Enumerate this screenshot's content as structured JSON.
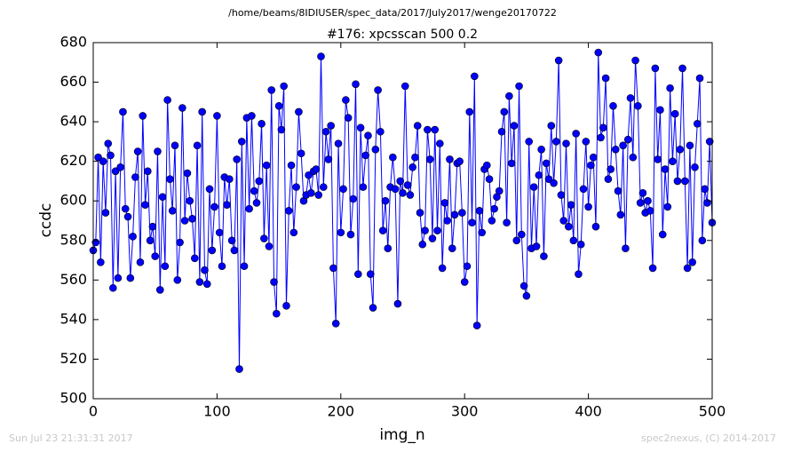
{
  "chart_data": {
    "type": "line",
    "suptitle": "/home/beams/8IDIUSER/spec_data/2017/July2017/wenge20170722",
    "title": "#176: xpcsscan 500 0.2",
    "xlabel": "img_n",
    "ylabel": "ccdc",
    "footer_left": "Sun Jul 23 21:31:31 2017",
    "footer_right": "spec2nexus, (C) 2014-2017",
    "xlim": [
      0,
      500
    ],
    "xticks": [
      0,
      100,
      200,
      300,
      400,
      500
    ],
    "ylim": [
      500,
      680
    ],
    "yticks": [
      500,
      520,
      540,
      560,
      580,
      600,
      620,
      640,
      660,
      680
    ],
    "grid": false,
    "x": [
      0,
      2,
      4,
      6,
      8,
      10,
      12,
      14,
      16,
      18,
      20,
      22,
      24,
      26,
      28,
      30,
      32,
      34,
      36,
      38,
      40,
      42,
      44,
      46,
      48,
      50,
      52,
      54,
      56,
      58,
      60,
      62,
      64,
      66,
      68,
      70,
      72,
      74,
      76,
      78,
      80,
      82,
      84,
      86,
      88,
      90,
      92,
      94,
      96,
      98,
      100,
      102,
      104,
      106,
      108,
      110,
      112,
      114,
      116,
      118,
      120,
      122,
      124,
      126,
      128,
      130,
      132,
      134,
      136,
      138,
      140,
      142,
      144,
      146,
      148,
      150,
      152,
      154,
      156,
      158,
      160,
      162,
      164,
      166,
      168,
      170,
      172,
      174,
      176,
      178,
      180,
      182,
      184,
      186,
      188,
      190,
      192,
      194,
      196,
      198,
      200,
      202,
      204,
      206,
      208,
      210,
      212,
      214,
      216,
      218,
      220,
      222,
      224,
      226,
      228,
      230,
      232,
      234,
      236,
      238,
      240,
      242,
      244,
      246,
      248,
      250,
      252,
      254,
      256,
      258,
      260,
      262,
      264,
      266,
      268,
      270,
      272,
      274,
      276,
      278,
      280,
      282,
      284,
      286,
      288,
      290,
      292,
      294,
      296,
      298,
      300,
      302,
      304,
      306,
      308,
      310,
      312,
      314,
      316,
      318,
      320,
      322,
      324,
      326,
      328,
      330,
      332,
      334,
      336,
      338,
      340,
      342,
      344,
      346,
      348,
      350,
      352,
      354,
      356,
      358,
      360,
      362,
      364,
      366,
      368,
      370,
      372,
      374,
      376,
      378,
      380,
      382,
      384,
      386,
      388,
      390,
      392,
      394,
      396,
      398,
      400,
      402,
      404,
      406,
      408,
      410,
      412,
      414,
      416,
      418,
      420,
      422,
      424,
      426,
      428,
      430,
      432,
      434,
      436,
      438,
      440,
      442,
      444,
      446,
      448,
      450,
      452,
      454,
      456,
      458,
      460,
      462,
      464,
      466,
      468,
      470,
      472,
      474,
      476,
      478,
      480,
      482,
      484,
      486,
      488,
      490,
      492,
      494,
      496,
      498,
      500
    ],
    "series": [
      {
        "name": "ccdc",
        "color": "#0000ff",
        "values": [
          575,
          579,
          622,
          569,
          620,
          594,
          629,
          623,
          556,
          615,
          561,
          617,
          645,
          596,
          592,
          561,
          582,
          612,
          625,
          569,
          643,
          598,
          615,
          580,
          587,
          572,
          625,
          555,
          602,
          567,
          651,
          611,
          595,
          628,
          560,
          579,
          647,
          590,
          614,
          600,
          591,
          571,
          628,
          559,
          645,
          565,
          558,
          606,
          575,
          597,
          643,
          584,
          567,
          612,
          598,
          611,
          580,
          575,
          621,
          515,
          630,
          567,
          642,
          596,
          643,
          605,
          599,
          610,
          639,
          581,
          618,
          577,
          656,
          559,
          543,
          648,
          636,
          658,
          547,
          595,
          618,
          584,
          607,
          645,
          624,
          600,
          603,
          613,
          604,
          615,
          616,
          603,
          673,
          607,
          635,
          621,
          638,
          566,
          538,
          629,
          584,
          606,
          651,
          642,
          583,
          601,
          659,
          563,
          637,
          607,
          623,
          633,
          563,
          546,
          626,
          656,
          635,
          585,
          600,
          576,
          607,
          622,
          606,
          548,
          610,
          604,
          658,
          608,
          603,
          617,
          622,
          638,
          594,
          578,
          585,
          636,
          621,
          581,
          636,
          585,
          629,
          566,
          599,
          590,
          621,
          576,
          593,
          619,
          620,
          594,
          559,
          567,
          645,
          589,
          663,
          537,
          595,
          584,
          616,
          618,
          611,
          590,
          596,
          602,
          605,
          635,
          645,
          589,
          653,
          619,
          638,
          580,
          658,
          583,
          557,
          552,
          630,
          576,
          607,
          577,
          613,
          626,
          572,
          619,
          611,
          638,
          609,
          630,
          671,
          603,
          590,
          629,
          587,
          598,
          580,
          634,
          563,
          578,
          606,
          630,
          597,
          618,
          622,
          587,
          675,
          632,
          637,
          662,
          611,
          616,
          648,
          626,
          605,
          593,
          628,
          576,
          631,
          652,
          622,
          671,
          648,
          599,
          604,
          594,
          600,
          595,
          566,
          667,
          621,
          646,
          583,
          616,
          597,
          657,
          620,
          644,
          610,
          626,
          667,
          610,
          566,
          628,
          569,
          617,
          639,
          662,
          580,
          606,
          599,
          630,
          589
        ]
      }
    ]
  }
}
